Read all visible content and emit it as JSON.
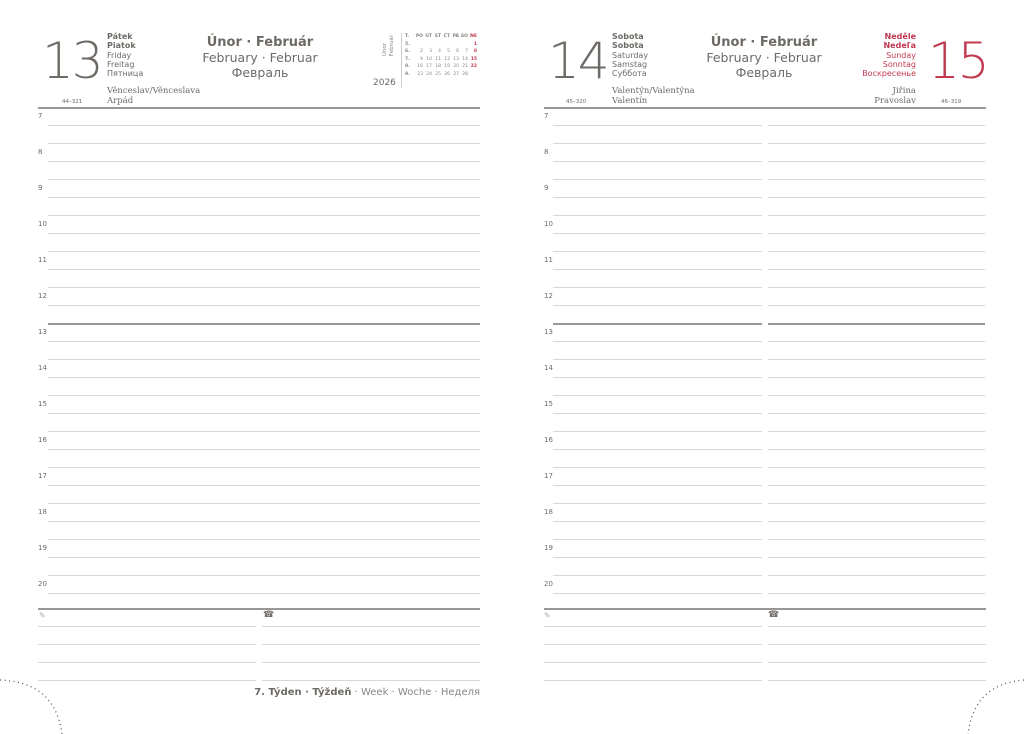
{
  "left_page": {
    "day_number": "13",
    "day_names": [
      "Pátek",
      "Piatok",
      "Friday",
      "Freitag",
      "Пятница"
    ],
    "month": {
      "cz_sk": "Únor · Február",
      "en_de": "February · Februar",
      "ru": "Февраль"
    },
    "name_days": [
      "Věnceslav/Věnceslava",
      "Arpád"
    ],
    "day_count": "44–321",
    "mini_calendar": {
      "month_label": [
        "Únor",
        "Február"
      ],
      "year": "2026",
      "header": [
        "T.",
        "PO",
        "ÚT",
        "ST",
        "ČT",
        "PÁ",
        "SO",
        "NE"
      ],
      "rows": [
        [
          "5.",
          "",
          "",
          "",
          "",
          "",
          "",
          "1"
        ],
        [
          "6.",
          "2",
          "3",
          "4",
          "5",
          "6",
          "7",
          "8"
        ],
        [
          "7.",
          "9",
          "10",
          "11",
          "12",
          "13",
          "14",
          "15"
        ],
        [
          "8.",
          "16",
          "17",
          "18",
          "19",
          "20",
          "21",
          "22"
        ],
        [
          "9.",
          "23",
          "24",
          "25",
          "26",
          "27",
          "28",
          ""
        ]
      ]
    },
    "hours": [
      "7",
      "8",
      "9",
      "10",
      "11",
      "12",
      "13",
      "14",
      "15",
      "16",
      "17",
      "18",
      "19",
      "20"
    ],
    "notes_icon": "pencil-icon",
    "phone_icon": "phone-icon"
  },
  "right_page": {
    "day_number": "14",
    "day_names": [
      "Sobota",
      "Sobota",
      "Saturday",
      "Samstag",
      "Суббота"
    ],
    "month": {
      "cz_sk": "Únor · Február",
      "en_de": "February · Februar",
      "ru": "Февраль"
    },
    "name_days": [
      "Valentýn/Valentýna",
      "Valentín"
    ],
    "day_count": "45–320",
    "second_day": {
      "day_number": "15",
      "day_names": [
        "Neděle",
        "Nedeľa",
        "Sunday",
        "Sonntag",
        "Воскресенье"
      ],
      "name_days": [
        "Jiřina",
        "Pravoslav"
      ],
      "day_count": "46–319"
    },
    "hours": [
      "7",
      "8",
      "9",
      "10",
      "11",
      "12",
      "13",
      "14",
      "15",
      "16",
      "17",
      "18",
      "19",
      "20"
    ]
  },
  "footer": {
    "week_bold": "7. Týden · Týždeň",
    "week_rest": " · Week · Woche · Неделя"
  },
  "colors": {
    "text": "#6e6a66",
    "sunday_red": "#c0394f",
    "line": "#d9d7d5"
  }
}
